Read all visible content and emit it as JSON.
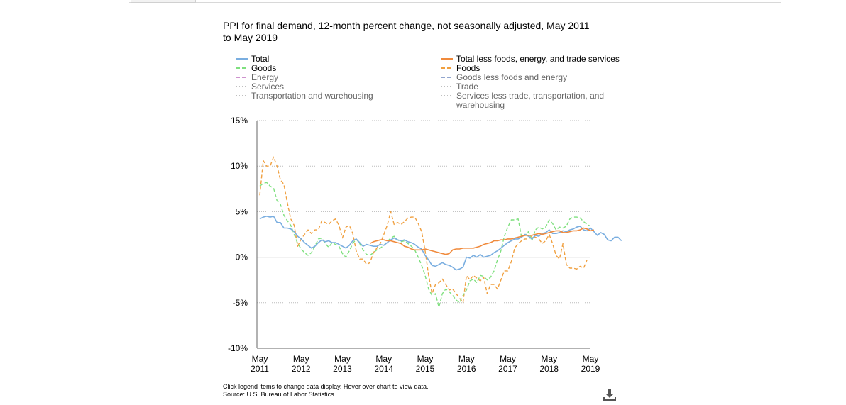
{
  "chart_data": {
    "type": "line",
    "title": "PPI for final demand, 12-month percent change, not seasonally adjusted, May 2011 to May 2019",
    "xlabel": "",
    "ylabel": "",
    "ylim": [
      -10,
      15
    ],
    "yticks": [
      15,
      10,
      5,
      0,
      -5,
      -10
    ],
    "ytick_labels": [
      "15%",
      "10%",
      "5%",
      "0%",
      "-5%",
      "-10%"
    ],
    "x_start": "2011-05",
    "x_end": "2019-05",
    "xticks": [
      {
        "month": "May",
        "year": "2011"
      },
      {
        "month": "May",
        "year": "2012"
      },
      {
        "month": "May",
        "year": "2013"
      },
      {
        "month": "May",
        "year": "2014"
      },
      {
        "month": "May",
        "year": "2015"
      },
      {
        "month": "May",
        "year": "2016"
      },
      {
        "month": "May",
        "year": "2017"
      },
      {
        "month": "May",
        "year": "2018"
      },
      {
        "month": "May",
        "year": "2019"
      }
    ],
    "grid": true,
    "legend_position": "top",
    "legend": [
      {
        "name": "Total",
        "color": "#7aaee0",
        "dash": "solid",
        "active": true
      },
      {
        "name": "Goods",
        "color": "#7fe07f",
        "dash": "dashed",
        "active": true
      },
      {
        "name": "Energy",
        "color": "#b050b0",
        "dash": "dashed",
        "active": false
      },
      {
        "name": "Services",
        "color": "#999999",
        "dash": "dotted",
        "active": false
      },
      {
        "name": "Transportation and warehousing",
        "color": "#999999",
        "dash": "dotted",
        "active": false
      },
      {
        "name": "Total less foods, energy, and trade services",
        "color": "#f08a3c",
        "dash": "solid",
        "active": true
      },
      {
        "name": "Foods",
        "color": "#f0a040",
        "dash": "dashed",
        "active": true
      },
      {
        "name": "Goods less foods and energy",
        "color": "#5070b0",
        "dash": "dashed",
        "active": false
      },
      {
        "name": "Trade",
        "color": "#999999",
        "dash": "dotted",
        "active": false
      },
      {
        "name": "Services less trade, transportation, and warehousing",
        "color": "#999999",
        "dash": "dotted",
        "active": false
      }
    ],
    "series": [
      {
        "name": "Total",
        "start": "2011-05",
        "values": [
          4.2,
          4.4,
          4.5,
          4.4,
          4.5,
          3.8,
          3.8,
          3.2,
          3.2,
          3.1,
          2.8,
          2.3,
          2.0,
          1.6,
          1.3,
          1.0,
          1.2,
          1.6,
          1.9,
          1.7,
          1.8,
          1.6,
          1.6,
          1.4,
          1.2,
          1.0,
          1.3,
          1.8,
          2.0,
          1.6,
          1.2,
          1.4,
          1.3,
          1.2,
          1.2,
          1.4,
          1.3,
          1.6,
          1.9,
          2.1,
          1.9,
          1.8,
          1.9,
          1.7,
          1.6,
          1.4,
          1.1,
          0.9,
          0.2,
          -0.3,
          -0.9,
          -1.0,
          -0.8,
          -0.6,
          -0.8,
          -0.9,
          -1.1,
          -1.4,
          -1.3,
          -1.1,
          0.0,
          -0.1,
          0.2,
          0.0,
          0.3,
          0.0,
          0.1,
          0.2,
          0.5,
          0.7,
          1.0,
          1.3,
          1.6,
          1.8,
          2.0,
          2.0,
          2.2,
          2.5,
          2.3,
          2.0,
          2.4,
          2.3,
          2.6,
          2.7,
          3.0,
          2.6,
          2.6,
          2.7,
          2.9,
          2.8,
          3.0,
          3.1,
          3.3,
          3.4,
          3.0,
          2.9,
          3.2,
          2.8,
          2.4,
          2.7,
          2.5,
          1.9,
          1.8,
          2.2,
          2.2,
          1.8
        ]
      },
      {
        "name": "Total less foods, energy, and trade services",
        "start": "2014-01",
        "values": [
          1.5,
          1.7,
          1.8,
          1.9,
          1.9,
          1.8,
          1.8,
          1.7,
          1.6,
          1.5,
          1.2,
          1.1,
          0.9,
          0.8,
          0.8,
          0.8,
          0.9,
          0.8,
          0.7,
          0.6,
          0.5,
          0.4,
          0.3,
          0.4,
          0.8,
          0.9,
          0.9,
          1.0,
          1.0,
          1.0,
          1.0,
          1.1,
          1.2,
          1.4,
          1.5,
          1.6,
          1.8,
          1.8,
          1.9,
          1.9,
          2.0,
          2.0,
          2.1,
          2.2,
          2.3,
          2.4,
          2.4,
          2.4,
          2.5,
          2.6,
          2.5,
          2.6,
          2.7,
          2.8,
          2.9,
          2.9,
          2.7,
          2.7,
          2.8,
          2.9,
          2.9,
          3.0,
          3.2,
          3.1,
          2.9,
          3.0
        ]
      },
      {
        "name": "Goods",
        "start": "2011-05",
        "values": [
          7.8,
          8.1,
          8.2,
          7.8,
          7.6,
          6.2,
          5.8,
          4.6,
          4.0,
          3.5,
          2.5,
          1.5,
          0.9,
          0.5,
          0.2,
          0.5,
          1.2,
          2.0,
          2.1,
          1.5,
          1.1,
          1.6,
          1.4,
          1.2,
          0.4,
          0.0,
          0.7,
          1.5,
          2.0,
          1.5,
          0.8,
          0.3,
          0.2,
          0.5,
          0.8,
          1.0,
          1.3,
          1.7,
          2.1,
          2.3,
          1.9,
          1.7,
          1.8,
          1.5,
          1.2,
          0.8,
          0.0,
          -0.9,
          -2.0,
          -3.5,
          -4.2,
          -4.0,
          -5.5,
          -4.0,
          -3.5,
          -3.8,
          -4.2,
          -4.7,
          -5.0,
          -4.2,
          -3.6,
          -2.6,
          -2.4,
          -2.8,
          -2.0,
          -2.1,
          -2.5,
          -2.2,
          -1.5,
          -0.3,
          0.7,
          2.3,
          3.3,
          4.1,
          4.1,
          4.2,
          2.2,
          2.4,
          2.8,
          1.8,
          3.0,
          3.3,
          3.1,
          3.3,
          4.1,
          3.7,
          3.0,
          3.3,
          3.2,
          3.4,
          4.2,
          4.4,
          4.4,
          4.3,
          3.9,
          3.6,
          3.4
        ]
      },
      {
        "name": "Foods",
        "start": "2011-05",
        "values": [
          6.8,
          10.6,
          10.0,
          10.0,
          11.0,
          10.0,
          8.5,
          8.0,
          6.0,
          4.2,
          3.5,
          1.2,
          2.0,
          2.5,
          3.0,
          2.6,
          3.0,
          3.0,
          4.0,
          3.8,
          3.6,
          4.0,
          4.2,
          3.5,
          2.1,
          3.3,
          3.5,
          2.6,
          0.7,
          -0.2,
          -0.2,
          -0.8,
          -0.6,
          0.5,
          1.0,
          1.5,
          2.5,
          3.5,
          5.0,
          3.6,
          3.8,
          3.6,
          3.9,
          4.3,
          4.4,
          4.4,
          3.7,
          2.8,
          0.7,
          -2.0,
          -4.0,
          -3.0,
          -2.8,
          -2.4,
          -3.0,
          -3.6,
          -3.5,
          -4.0,
          -4.5,
          -5.0,
          -2.0,
          -2.5,
          -2.0,
          -2.3,
          -2.6,
          -2.2,
          -4.0,
          -3.0,
          -3.0,
          -3.5,
          -2.5,
          -1.5,
          -1.5,
          -0.5,
          1.0,
          1.5,
          1.8,
          2.0,
          2.0,
          2.3,
          2.2,
          2.0,
          1.5,
          1.8,
          2.5,
          1.5,
          0.2,
          -0.2,
          1.5,
          -0.8,
          -1.2,
          -1.2,
          -1.3,
          -1.0,
          -1.2,
          -0.3
        ]
      }
    ]
  },
  "notes": {
    "line1": "Click legend items to change data display. Hover over chart to view data.",
    "line2": "Source: U.S. Bureau of Labor Statistics."
  },
  "download_icon": "download-icon"
}
